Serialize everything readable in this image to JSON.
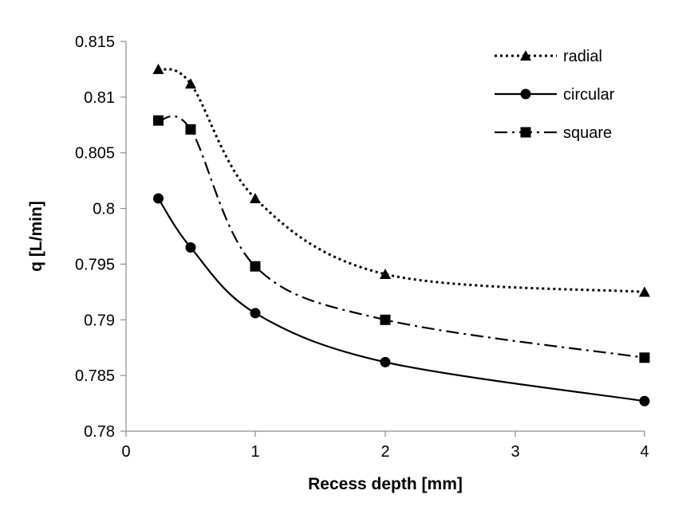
{
  "chart_data": {
    "type": "line",
    "categories": [
      "0",
      "1",
      "2",
      "3",
      "4"
    ],
    "x": [
      0.25,
      0.5,
      1,
      2,
      4
    ],
    "xlabel": "Recess depth [mm]",
    "ylabel": "q [L/min]",
    "ylim": [
      0.78,
      0.815
    ],
    "yticks": [
      "0.78",
      "0.785",
      "0.79",
      "0.795",
      "0.8",
      "0.805",
      "0.81",
      "0.815"
    ],
    "xtick_labels": [
      "0",
      "1",
      "2",
      "3",
      "4"
    ],
    "legend_position": "top-right",
    "grid": false,
    "series": [
      {
        "name": "radial",
        "marker": "triangle",
        "line_style": "dotted",
        "color": "#000000",
        "values": [
          0.8125,
          0.8112,
          0.8009,
          0.7941,
          0.7925
        ]
      },
      {
        "name": "circular",
        "marker": "circle",
        "line_style": "solid",
        "color": "#000000",
        "values": [
          0.8009,
          0.7965,
          0.7906,
          0.7862,
          0.7827
        ]
      },
      {
        "name": "square",
        "marker": "square",
        "line_style": "dash-dot",
        "color": "#000000",
        "values": [
          0.8079,
          0.8071,
          0.7948,
          0.79,
          0.7866
        ]
      }
    ]
  }
}
